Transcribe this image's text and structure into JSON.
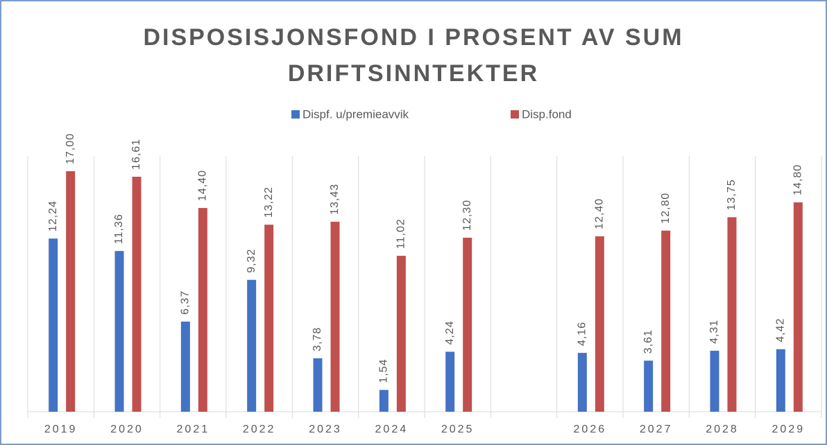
{
  "chart_data": {
    "type": "bar",
    "title": "DISPOSISJONSFOND I PROSENT AV SUM DRIFTSINNTEKTER",
    "categories": [
      "2019",
      "2020",
      "2021",
      "2022",
      "2023",
      "2024",
      "2025",
      null,
      "2026",
      "2027",
      "2028",
      "2029"
    ],
    "series": [
      {
        "name": "Dispf. u/premieavvik",
        "color": "#4472c4",
        "values": [
          12.24,
          11.36,
          6.37,
          9.32,
          3.78,
          1.54,
          4.24,
          null,
          4.16,
          3.61,
          4.31,
          4.42
        ],
        "value_labels": [
          "12,24",
          "11,36",
          "6,37",
          "9,32",
          "3,78",
          "1,54",
          "4,24",
          null,
          "4,16",
          "3,61",
          "4,31",
          "4,42"
        ]
      },
      {
        "name": "Disp.fond",
        "color": "#c0504d",
        "values": [
          17.0,
          16.61,
          14.4,
          13.22,
          13.43,
          11.02,
          12.3,
          null,
          12.4,
          12.8,
          13.75,
          14.8
        ],
        "value_labels": [
          "17,00",
          "16,61",
          "14,40",
          "13,22",
          "13,43",
          "11,02",
          "12,30",
          null,
          "12,40",
          "12,80",
          "13,75",
          "14,80"
        ]
      }
    ],
    "legend": "top"
  }
}
